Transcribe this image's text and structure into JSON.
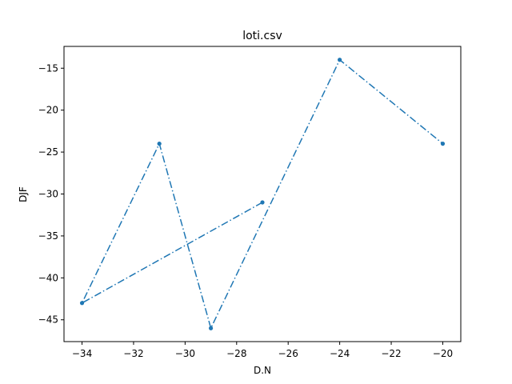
{
  "chart_data": {
    "type": "line",
    "title": "loti.csv",
    "xlabel": "D.N",
    "ylabel": "DJF",
    "xlim": [
      -34.7,
      -19.3
    ],
    "ylim": [
      -47.6,
      -12.4
    ],
    "x_ticks": [
      -34,
      -32,
      -30,
      -28,
      -26,
      -24,
      -22,
      -20
    ],
    "y_ticks": [
      -45,
      -40,
      -35,
      -30,
      -25,
      -20,
      -15
    ],
    "grid": false,
    "legend": "none",
    "series": [
      {
        "x": [
          -27,
          -34,
          -31,
          -29,
          -24,
          -20
        ],
        "y": [
          -31,
          -43,
          -24,
          -46,
          -14,
          -24
        ],
        "color": "#1f77b4",
        "line_style": "dash-dot",
        "marker": "dot"
      }
    ]
  }
}
